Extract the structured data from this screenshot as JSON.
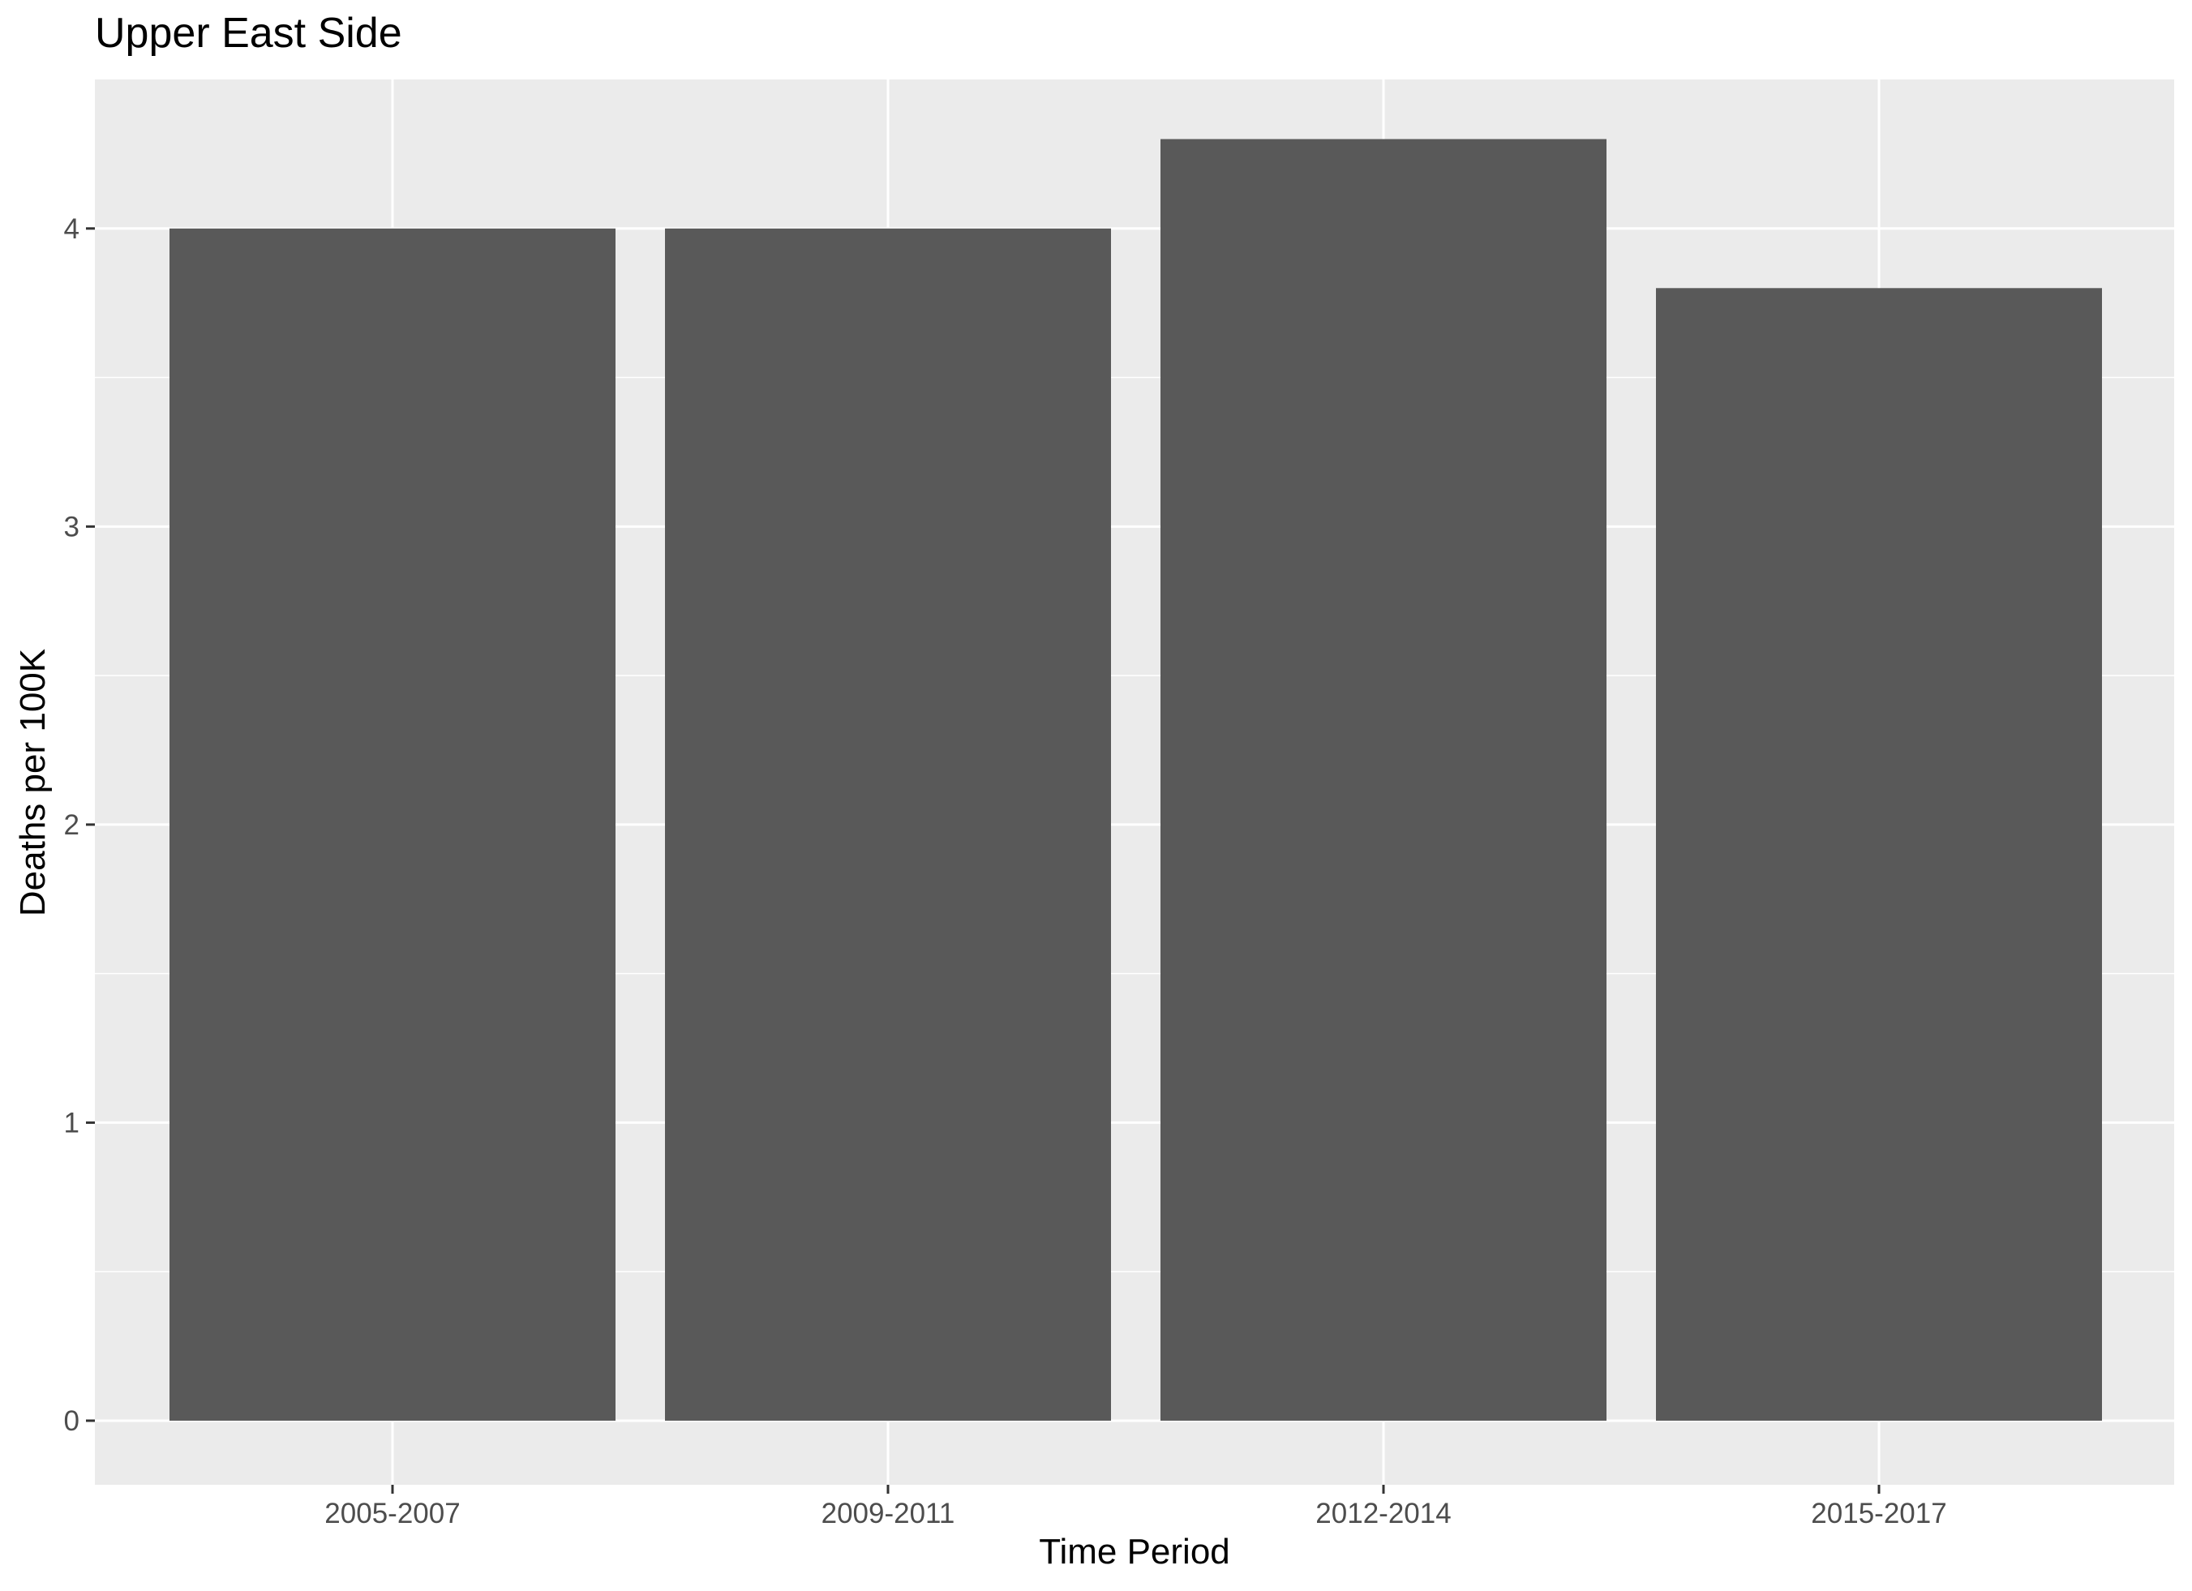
{
  "chart_data": {
    "type": "bar",
    "title": "Upper East Side",
    "xlabel": "Time Period",
    "ylabel": "Deaths per 100K",
    "categories": [
      "2005-2007",
      "2009-2011",
      "2012-2014",
      "2015-2017"
    ],
    "values": [
      4.0,
      4.0,
      4.3,
      3.8
    ],
    "ylim": [
      -0.215,
      4.5
    ],
    "yticks": [
      0,
      1,
      2,
      3,
      4
    ],
    "ytick_labels": [
      "0",
      "1",
      "2",
      "3",
      "4"
    ],
    "grid": true,
    "legend": "none"
  },
  "colors": {
    "panel_background": "#EBEBEB",
    "grid": "#FFFFFF",
    "bar_fill": "#595959",
    "tick_mark": "#333333",
    "tick_label": "#4D4D4D"
  }
}
